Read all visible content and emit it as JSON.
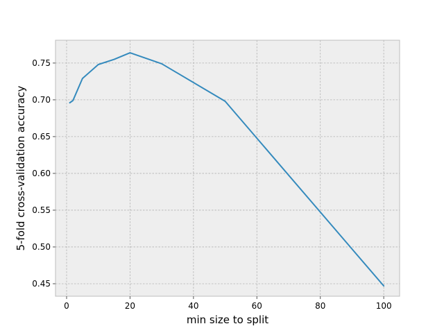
{
  "chart_data": {
    "type": "line",
    "title": "",
    "xlabel": "min size to split",
    "ylabel": "5-fold cross-validation accuracy",
    "xlim": [
      -3.5,
      105
    ],
    "ylim": [
      0.433,
      0.781
    ],
    "xticks": [
      0,
      20,
      40,
      60,
      80,
      100
    ],
    "xtick_labels": [
      "0",
      "20",
      "40",
      "60",
      "80",
      "100"
    ],
    "yticks": [
      0.45,
      0.5,
      0.55,
      0.6,
      0.65,
      0.7,
      0.75
    ],
    "ytick_labels": [
      "0.45",
      "0.50",
      "0.55",
      "0.60",
      "0.65",
      "0.70",
      "0.75"
    ],
    "grid": true,
    "colors": {
      "background": "#eeeeee",
      "grid": "#b2b2b2",
      "frame": "#bcbcbc",
      "line": "#348abd"
    },
    "series": [
      {
        "x": [
          1,
          2,
          5,
          10,
          15,
          20,
          30,
          50,
          100
        ],
        "y": [
          0.696,
          0.699,
          0.729,
          0.748,
          0.755,
          0.764,
          0.749,
          0.698,
          0.447
        ]
      }
    ]
  }
}
